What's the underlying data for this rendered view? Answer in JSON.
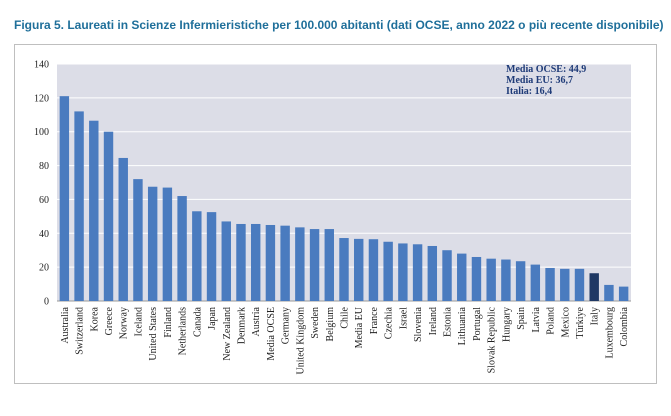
{
  "figure": {
    "title": "Figura 5. Laureati in Scienze Infermieristiche per 100.000 abitanti (dati OCSE, anno 2022 o più recente disponibile)"
  },
  "chart_data": {
    "type": "bar",
    "title": "",
    "xlabel": "",
    "ylabel": "",
    "ylim": [
      0,
      140
    ],
    "yticks": [
      0,
      20,
      40,
      60,
      80,
      100,
      120,
      140
    ],
    "grid": true,
    "categories": [
      "Australia",
      "Switzerland",
      "Korea",
      "Greece",
      "Norway",
      "Iceland",
      "United States",
      "Finland",
      "Netherlands",
      "Canada",
      "Japan",
      "New Zealand",
      "Denmark",
      "Austria",
      "Media OCSE",
      "Germany",
      "United Kingdom",
      "Sweden",
      "Belgium",
      "Chile",
      "Media EU",
      "France",
      "Czechia",
      "Israel",
      "Slovenia",
      "Ireland",
      "Estonia",
      "Lithuania",
      "Portugal",
      "Slovak Republic",
      "Hungary",
      "Spain",
      "Latvia",
      "Poland",
      "Mexico",
      "Türkiye",
      "Italy",
      "Luxembourg",
      "Colombia"
    ],
    "values": [
      121,
      112,
      106.5,
      100,
      84.5,
      72,
      67.5,
      67,
      62,
      53,
      52.5,
      47,
      45.5,
      45.5,
      44.9,
      44.5,
      43.5,
      42.5,
      42.5,
      37.2,
      36.7,
      36.5,
      35,
      34,
      33.5,
      32.5,
      30,
      28,
      26,
      25,
      24.5,
      23.5,
      21.5,
      19.5,
      19,
      19,
      16.4,
      9.5,
      8.5
    ],
    "highlight": {
      "category": "Italy",
      "color": "#1f3864"
    },
    "bar_color": "#4a7bbf",
    "annotations": [
      "Media OCSE: 44,9",
      "Media EU: 36,7",
      "Italia: 16,4"
    ]
  }
}
